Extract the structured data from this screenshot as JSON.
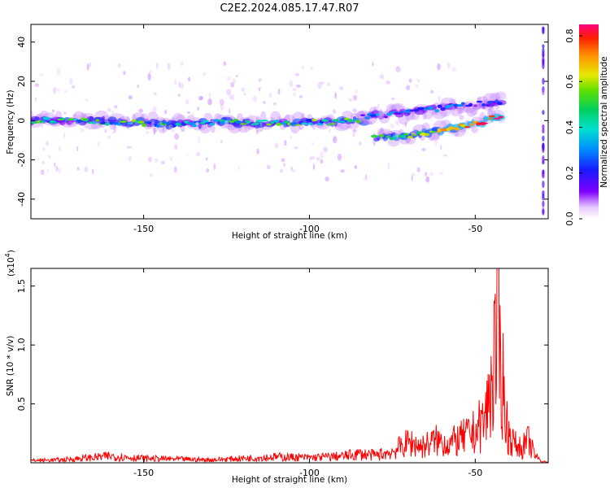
{
  "title": "C2E2.2024.085.17.47.R07",
  "chart_data": [
    {
      "type": "heatmap",
      "xlabel": "Height of straight line (km)",
      "ylabel": "Frequency (Hz)",
      "xlim": [
        -184,
        -28
      ],
      "ylim": [
        -50,
        49
      ],
      "xticks": [
        -150,
        -100,
        -50
      ],
      "yticks": [
        -40,
        -20,
        0,
        20,
        40
      ],
      "colorbar": {
        "label": "Normalized spectral amplitude",
        "range": [
          0,
          0.85
        ],
        "ticks": [
          "0.0",
          "0.2",
          "0.4",
          "0.6",
          "0.8"
        ]
      },
      "bands": [
        {
          "x": [
            -184,
            -83
          ],
          "freq": [
            0,
            0,
            -1,
            -2,
            -1,
            -1,
            -1,
            0
          ],
          "amplitude_peak": 0.6
        },
        {
          "x": [
            -80,
            -42
          ],
          "freq": [
            -9,
            -8,
            -6,
            -4,
            -2,
            3
          ],
          "amplitude_peak": 0.85
        },
        {
          "x": [
            -84,
            -42
          ],
          "freq": [
            2,
            3,
            5,
            7,
            8,
            10
          ],
          "amplitude_peak": 0.35
        }
      ]
    },
    {
      "type": "line",
      "xlabel": "Height of straight line (km)",
      "ylabel": "SNR (10 * v/v)",
      "y_multiplier": "(x10",
      "y_multiplier_exp": "4",
      "xlim": [
        -184,
        -28
      ],
      "ylim": [
        0,
        1.65
      ],
      "xticks": [
        -150,
        -100,
        -50
      ],
      "yticks": [
        0.5,
        1.0,
        1.5
      ],
      "yticklabels": [
        "0.5",
        "1.0",
        "1.5"
      ],
      "series": [
        {
          "color": "#ff0000",
          "x": [
            -184,
            -175,
            -166,
            -160,
            -150,
            -140,
            -130,
            -120,
            -110,
            -100,
            -90,
            -85,
            -80,
            -75,
            -70,
            -66,
            -62,
            -58,
            -54,
            -50,
            -47,
            -45,
            -44,
            -43,
            -42,
            -41,
            -40,
            -38,
            -36,
            -34,
            -32,
            -30,
            -28
          ],
          "y": [
            0.03,
            0.04,
            0.07,
            0.09,
            0.06,
            0.05,
            0.04,
            0.06,
            0.08,
            0.07,
            0.09,
            0.12,
            0.1,
            0.15,
            0.28,
            0.22,
            0.3,
            0.26,
            0.33,
            0.42,
            0.6,
            1.1,
            1.55,
            1.65,
            1.3,
            0.7,
            0.4,
            0.25,
            0.2,
            0.3,
            0.1,
            0.02,
            0.01
          ]
        }
      ]
    }
  ]
}
